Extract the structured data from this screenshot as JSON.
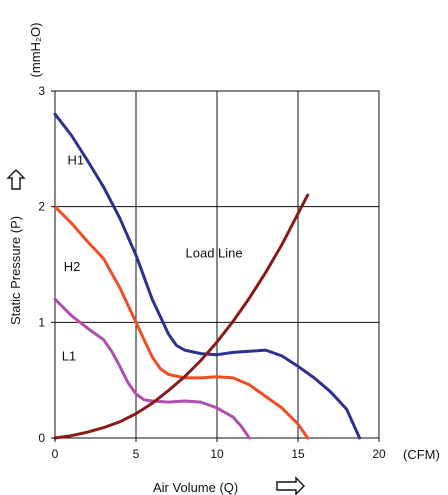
{
  "chart_data": {
    "type": "line",
    "xlabel": "Air Volume (Q)",
    "ylabel": "Static Pressure (P)",
    "x_unit": "(CFM)",
    "y_unit": "(mmH₂O)",
    "xlim": [
      0,
      20
    ],
    "ylim": [
      0,
      3
    ],
    "x_ticks": [
      "0",
      "5",
      "10",
      "15",
      "20"
    ],
    "y_ticks": [
      "0",
      "1",
      "2",
      "3"
    ],
    "grid": true,
    "series": [
      {
        "name": "H1",
        "color": "#2e3192",
        "x": [
          0,
          1,
          2,
          3,
          4,
          5,
          6,
          7,
          7.5,
          8,
          9,
          10,
          11,
          12,
          13,
          14,
          15,
          16,
          17,
          18,
          18.8
        ],
        "y": [
          2.8,
          2.62,
          2.4,
          2.17,
          1.9,
          1.58,
          1.2,
          0.9,
          0.8,
          0.76,
          0.73,
          0.72,
          0.74,
          0.75,
          0.76,
          0.71,
          0.62,
          0.52,
          0.4,
          0.25,
          0.0
        ]
      },
      {
        "name": "H2",
        "color": "#f04e23",
        "x": [
          0,
          1,
          2,
          3,
          4,
          5,
          5.5,
          6,
          6.5,
          7,
          8,
          9,
          10,
          11,
          12,
          13,
          14,
          15,
          15.6
        ],
        "y": [
          2.0,
          1.86,
          1.7,
          1.55,
          1.3,
          1.0,
          0.85,
          0.7,
          0.6,
          0.55,
          0.52,
          0.52,
          0.53,
          0.52,
          0.46,
          0.36,
          0.26,
          0.12,
          0.0
        ]
      },
      {
        "name": "L1",
        "color": "#b04fb0",
        "x": [
          0,
          1,
          2,
          3,
          3.5,
          4,
          4.5,
          5,
          5.5,
          6,
          7,
          8,
          9,
          10,
          11,
          11.5,
          12
        ],
        "y": [
          1.2,
          1.06,
          0.95,
          0.85,
          0.75,
          0.62,
          0.48,
          0.38,
          0.33,
          0.32,
          0.31,
          0.32,
          0.31,
          0.26,
          0.18,
          0.1,
          0.0
        ]
      },
      {
        "name": "Load Line",
        "color": "#8b1a1a",
        "x": [
          0,
          1,
          2,
          3,
          4,
          5,
          6,
          7,
          8,
          9,
          10,
          11,
          12,
          13,
          14,
          15,
          15.6
        ],
        "y": [
          0.0,
          0.02,
          0.05,
          0.09,
          0.14,
          0.21,
          0.3,
          0.41,
          0.53,
          0.67,
          0.83,
          1.01,
          1.21,
          1.43,
          1.67,
          1.94,
          2.1
        ]
      }
    ]
  }
}
